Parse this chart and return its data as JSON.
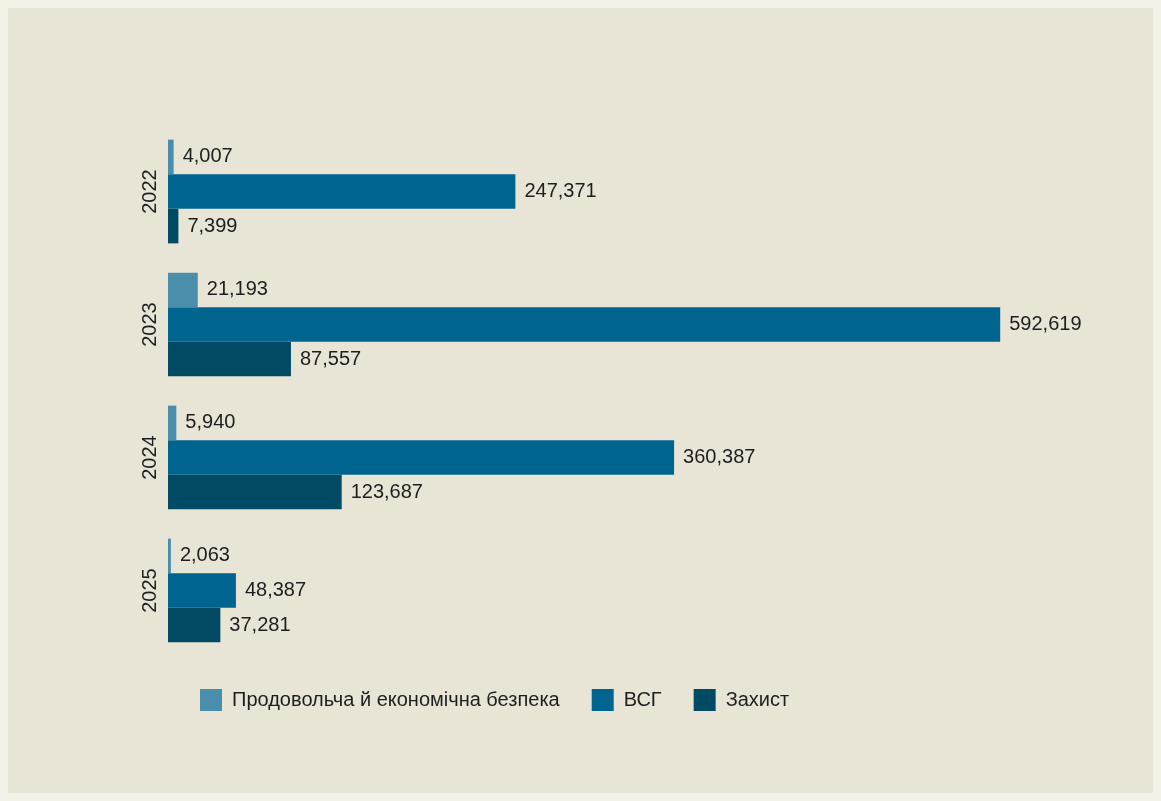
{
  "chart_data": {
    "type": "bar",
    "orientation": "horizontal",
    "categories": [
      "2022",
      "2023",
      "2024",
      "2025"
    ],
    "series": [
      {
        "name": "Продовольча й економічна безпека",
        "color": "#4a8eac",
        "values": [
          4007,
          21193,
          5940,
          2063
        ],
        "value_labels": [
          "4,007",
          "21,193",
          "5,940",
          "2,063"
        ]
      },
      {
        "name": "ВСГ",
        "color": "#00658e",
        "values": [
          247371,
          592619,
          360387,
          48387
        ],
        "value_labels": [
          "247,371",
          "592,619",
          "360,387",
          "48,387"
        ]
      },
      {
        "name": "Захист",
        "color": "#004b63",
        "values": [
          7399,
          87557,
          123687,
          37281
        ],
        "value_labels": [
          "7,399",
          "87,557",
          "123,687",
          "37,281"
        ]
      }
    ],
    "legend": "bottom",
    "tick_labels": "y"
  }
}
